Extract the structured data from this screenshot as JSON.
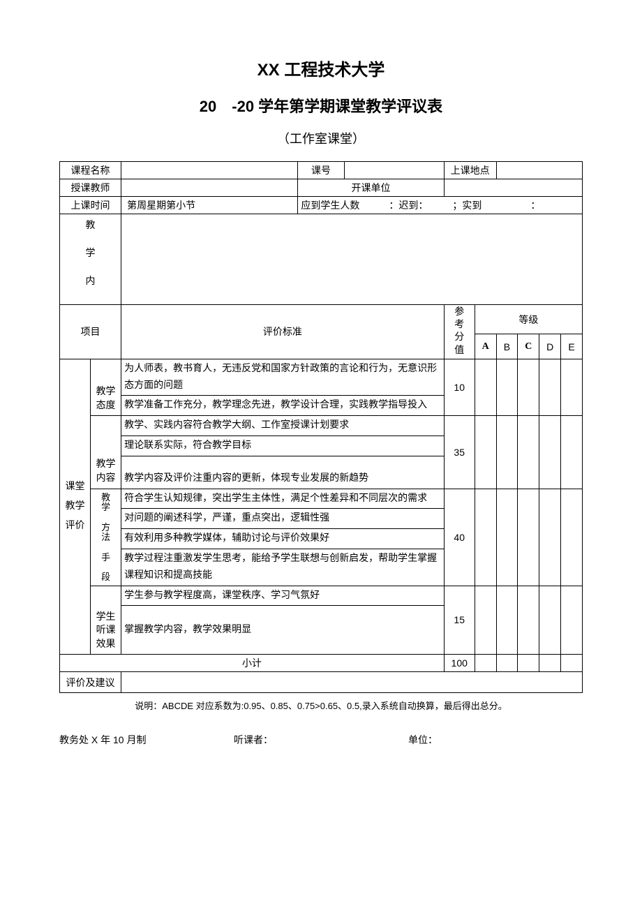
{
  "title1": "XX 工程技术大学",
  "title2": "20　-20 学年第学期课堂教学评议表",
  "subtitle": "（工作室课堂）",
  "header": {
    "course_name_label": "课程名称",
    "course_no_label": "课号",
    "location_label": "上课地点",
    "teacher_label": "授课教师",
    "dept_label": "开课单位",
    "time_label": "上课时间",
    "time_value": "第周星期第小节",
    "attendance": "应到学生人数　　　：迟到：　　　；实到　　　　　：",
    "teach_content_label": "教\n学\n内"
  },
  "eval": {
    "project_label": "项目",
    "criteria_label": "评价标准",
    "score_ref_label": "参考分值",
    "grade_label": "等级",
    "grades": [
      "A",
      "B",
      "C",
      "D",
      "E"
    ],
    "category_label": "课堂\n教学\n评价",
    "groups": [
      {
        "sub_label": "教学\n态度",
        "score": 10,
        "items": [
          "为人师表，教书育人，无违反党和国家方针政策的言论和行为，无意识形态方面的问题",
          "教学准备工作充分，教学理念先进，教学设计合理，实践教学指导投入"
        ]
      },
      {
        "sub_label": "教学\n内容",
        "score": 35,
        "items": [
          "教学、实践内容符合教学大纲、工作室授课计划要求",
          "理论联系实际，符合教学目标",
          "教学内容及评价注重内容的更新，体现专业发展的新趋势"
        ],
        "spacer_before_last": true
      },
      {
        "sub_label": "教学\n方法\n手\n段",
        "score": 40,
        "items": [
          "符合学生认知规律，突出学生主体性，满足个性差异和不同层次的需求",
          "对问题的阐述科学，严谨，重点突出，逻辑性强",
          "有效利用多种教学媒体，辅助讨论与评价效果好",
          "教学过程注重激发学生思考，能给予学生联想与创新启发，帮助学生掌握课程知识和提高技能"
        ]
      },
      {
        "sub_label": "学生听课效果",
        "score": 15,
        "items": [
          "学生参与教学程度高，课堂秩序、学习气氛好",
          "掌握教学内容，教学效果明显"
        ],
        "tall_last": true
      }
    ],
    "subtotal_label": "小计",
    "subtotal_score": 100,
    "suggestion_label": "评价及建议"
  },
  "note": "说明：ABCDE 对应系数为:0.95、0.85、0.75>0.65、0.5,录入系统自动换算，最后得出总分。",
  "footer": {
    "left": "教务处 X 年 10 月制",
    "mid": "听课者：",
    "right": "单位："
  }
}
